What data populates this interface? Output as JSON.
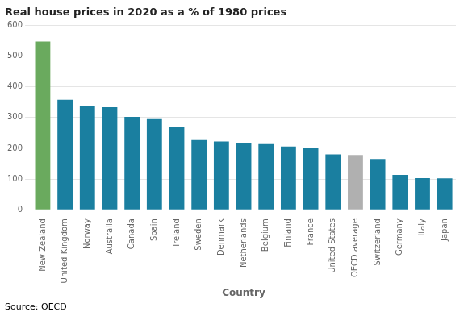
{
  "chart_data": {
    "type": "bar",
    "title": "Real house prices in 2020 as a % of 1980 prices",
    "xlabel": "Country",
    "annotation": "Source: OECD",
    "categories": [
      "New Zealand",
      "United Kingdom",
      "Norway",
      "Australia",
      "Canada",
      "Spain",
      "Ireland",
      "Sweden",
      "Denmark",
      "Netherlands",
      "Belgium",
      "Finland",
      "France",
      "United States",
      "OECD average",
      "Switzerland",
      "Germany",
      "Italy",
      "Japan"
    ],
    "values": [
      548,
      358,
      338,
      334,
      302,
      295,
      270,
      227,
      222,
      218,
      214,
      206,
      201,
      180,
      178,
      165,
      113,
      103,
      102
    ],
    "colors": [
      "#6aaa5e",
      "#1a7fa0",
      "#1a7fa0",
      "#1a7fa0",
      "#1a7fa0",
      "#1a7fa0",
      "#1a7fa0",
      "#1a7fa0",
      "#1a7fa0",
      "#1a7fa0",
      "#1a7fa0",
      "#1a7fa0",
      "#1a7fa0",
      "#1a7fa0",
      "#b0b0b0",
      "#1a7fa0",
      "#1a7fa0",
      "#1a7fa0",
      "#1a7fa0"
    ],
    "ylim": [
      0,
      600
    ],
    "yticks": [
      0,
      100,
      200,
      300,
      400,
      500,
      600
    ],
    "grid": true
  }
}
